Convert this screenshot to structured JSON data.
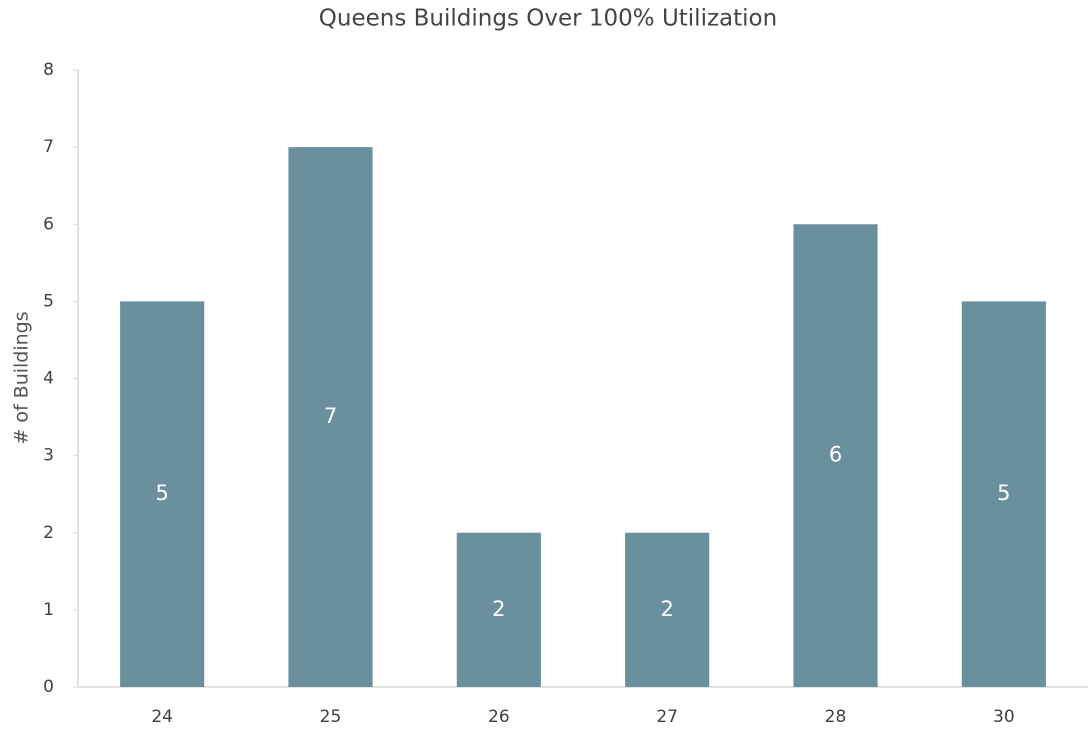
{
  "chart_data": {
    "type": "bar",
    "title": "Queens Buildings Over 100% Utilization",
    "y_label": "# of Buildings",
    "categories": [
      "24",
      "25",
      "26",
      "27",
      "28",
      "30"
    ],
    "values": [
      5,
      7,
      2,
      2,
      6,
      5
    ],
    "color": "#6a909e",
    "ylim": [
      0,
      8
    ],
    "yticks": [
      0,
      1,
      2,
      3,
      4,
      5,
      6,
      7,
      8
    ],
    "grid": false
  }
}
